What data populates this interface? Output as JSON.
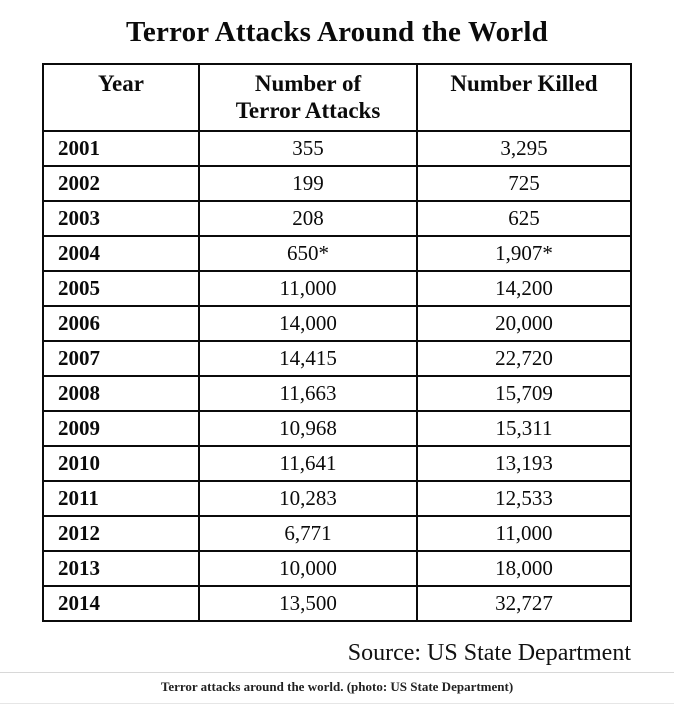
{
  "title": "Terror Attacks Around the World",
  "table": {
    "headers": [
      "Year",
      "Number of Terror Attacks",
      "Number Killed"
    ],
    "rows": [
      [
        "2001",
        "355",
        "3,295"
      ],
      [
        "2002",
        "199",
        "725"
      ],
      [
        "2003",
        "208",
        "625"
      ],
      [
        "2004",
        "650*",
        "1,907*"
      ],
      [
        "2005",
        "11,000",
        "14,200"
      ],
      [
        "2006",
        "14,000",
        "20,000"
      ],
      [
        "2007",
        "14,415",
        "22,720"
      ],
      [
        "2008",
        "11,663",
        "15,709"
      ],
      [
        "2009",
        "10,968",
        "15,311"
      ],
      [
        "2010",
        "11,641",
        "13,193"
      ],
      [
        "2011",
        "10,283",
        "12,533"
      ],
      [
        "2012",
        "6,771",
        "11,000"
      ],
      [
        "2013",
        "10,000",
        "18,000"
      ],
      [
        "2014",
        "13,500",
        "32,727"
      ]
    ]
  },
  "source": "Source: US State Department",
  "caption": "Terror attacks around the world. (photo: US State Department)",
  "colors": {
    "text": "#0b0b0b",
    "table_border": "#0b0b0b",
    "caption_rule": "#d8d8d8",
    "background": "#ffffff"
  },
  "chart_data": {
    "type": "table",
    "title": "Terror Attacks Around the World",
    "columns": [
      "Year",
      "Number of Terror Attacks",
      "Number Killed"
    ],
    "rows": [
      {
        "year": 2001,
        "attacks": 355,
        "killed": 3295
      },
      {
        "year": 2002,
        "attacks": 199,
        "killed": 725
      },
      {
        "year": 2003,
        "attacks": 208,
        "killed": 625
      },
      {
        "year": 2004,
        "attacks": 650,
        "killed": 1907,
        "note": "values marked with asterisk (*)"
      },
      {
        "year": 2005,
        "attacks": 11000,
        "killed": 14200
      },
      {
        "year": 2006,
        "attacks": 14000,
        "killed": 20000
      },
      {
        "year": 2007,
        "attacks": 14415,
        "killed": 22720
      },
      {
        "year": 2008,
        "attacks": 11663,
        "killed": 15709
      },
      {
        "year": 2009,
        "attacks": 10968,
        "killed": 15311
      },
      {
        "year": 2010,
        "attacks": 11641,
        "killed": 13193
      },
      {
        "year": 2011,
        "attacks": 10283,
        "killed": 12533
      },
      {
        "year": 2012,
        "attacks": 6771,
        "killed": 11000
      },
      {
        "year": 2013,
        "attacks": 10000,
        "killed": 18000
      },
      {
        "year": 2014,
        "attacks": 13500,
        "killed": 32727
      }
    ],
    "source": "US State Department",
    "caption": "Terror attacks around the world. (photo: US State Department)"
  }
}
